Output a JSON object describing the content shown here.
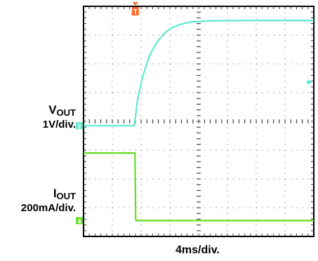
{
  "chart_data": {
    "type": "line",
    "x_division_label": "4ms/div.",
    "time_per_division_ms": 4,
    "divisions_x": 8,
    "divisions_y": 8,
    "xlim_ms": [
      -7.2,
      24.8
    ],
    "trigger_time_ms": 0,
    "trigger_marker": "T",
    "grid": true,
    "series": [
      {
        "name": "V",
        "name_subscript": "OUT",
        "scale_label": "1V/div.",
        "marker_glyph": "2",
        "color": "#5fe8d0",
        "units": "V",
        "baseline_div": 3.85,
        "x_ms": [
          -7.2,
          -0.2,
          0,
          0.3,
          1,
          2,
          3,
          4,
          5,
          6,
          7,
          8,
          10,
          12,
          16,
          20,
          24.8
        ],
        "y_div": [
          0,
          0,
          0.25,
          0.9,
          1.7,
          2.45,
          2.9,
          3.2,
          3.4,
          3.5,
          3.57,
          3.61,
          3.64,
          3.65,
          3.66,
          3.66,
          3.66
        ]
      },
      {
        "name": "I",
        "name_subscript": "OUT",
        "scale_label": "200mA/div.",
        "marker_glyph": "4",
        "color": "#66dd22",
        "units": "mA",
        "baseline_div": 0.55,
        "x_ms": [
          -7.2,
          -0.05,
          0,
          0.05,
          0.1,
          24.8
        ],
        "y_div": [
          2.35,
          2.35,
          1.2,
          0.05,
          0,
          0
        ]
      }
    ],
    "right_edge_marker": {
      "glyph": "◆",
      "color": "#5fe8d0",
      "level_div": 5.4
    }
  }
}
